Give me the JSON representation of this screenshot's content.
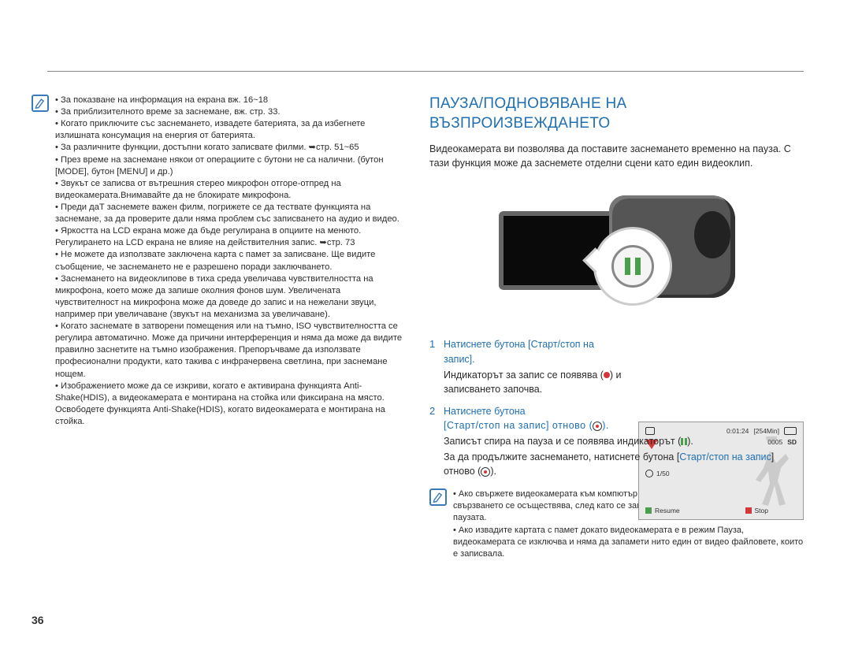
{
  "page_number": "36",
  "left": {
    "bullets": [
      "За показване на информация на екрана вж. 16~18",
      "За приблизителното време за заснемане, вж. стр. 33.",
      "Когато приключите със заснемането, извадете батерията, за да избегнете излишната консумация на енергия от батерията.",
      "За различните функции, достъпни когато записвате филми. ➥стр. 51~65",
      "През време на заснемане някои от операциите с бутони не са налични. (бутон [MODE], бутон [MENU] и др.)",
      "Звукът се записва от вътрешния стерео микрофон отгоре-отпред на видеокамерата.Внимавайте да не блокирате микрофона.",
      "Преди даT заснемете важен филм, погрижете се да тествате функцията на заснемане, за да проверите дали няма проблем със записването на аудио и видео.",
      "Яркостта на LCD екрана може да бъде регулирана в опциите на менюто. Регулирането на LCD екрана не влияе на действителния запис. ➥стр. 73",
      "Не можете да използвате заключена карта с памет за записване. Ще видите съобщение, че заснемането не е разрешено поради заключването.",
      "Заснемането на видеоклипове в тиха среда увеличава чувствителността на микрофона, което може да запише околния фонов шум. Увеличената чувствителност на микрофона може да доведе до запис и на нежелани звуци, например при увеличаване (звукът на механизма за увеличаване).",
      "Когато заснемате в затворени помещения или на тъмно, ISO чувствителността се регулира автоматично. Може да причини интерференция и няма да може да видите правилно заснетите на тъмно изображения. Препоръчваме да използвате професионални продукти, като такива с инфрачервена светлина, при заснемане нощем.",
      "Изображението може да се изкриви, когато е активирана функцията Anti-Shake(HDIS), а видеокамерата е монтирана на стойка или фиксирана на място. Освободете функцията Anti-Shake(HDIS), когато видеокамерата е монтирана на стойка."
    ]
  },
  "right": {
    "title": "ПАУЗА/ПОДНОВЯВАНЕ НА ВЪЗПРОИЗВЕЖДАНЕТО",
    "intro": "Видеокамерата ви позволява да поставите заснемането временно на пауза. С тази функция може да заснемете отделни сцени като един видеоклип.",
    "step1_label": "1",
    "step1_blue": "Натиснете бутона [Старт/стоп на запис].",
    "step1_body": "Индикаторът за запис се появява (  ) и записването започва.",
    "step2_label": "2",
    "step2_blue": "Натиснете бутона",
    "step2_garble": "[Старт/стоп на запис] отново (   ).",
    "step2_body1": "Записът спира на пауза и се появява индикаторът (  ).",
    "step2_body2": "За да продължите заснемането, натиснете бутона [Старт/стоп на запис] отново (   ).",
    "lcd": {
      "time": "0:01:24",
      "remain": "[254Min]",
      "count": "0005",
      "shutter": "1/50",
      "resume": "Resume",
      "stop": "Stop",
      "sd": "SD"
    },
    "note_bullets": [
      "Ако свържете видеокамерата към компютър чрез USB кабел в режим на пауза, свързването се осъществява, след като се запише файлът, който е заснет преди паузата.",
      "Ако извадите картата с памет докато видеокамерата е в режим Пауза, видеокамерата се изключва и няма да запамети нито един от видео файловете, които е записвала."
    ]
  }
}
